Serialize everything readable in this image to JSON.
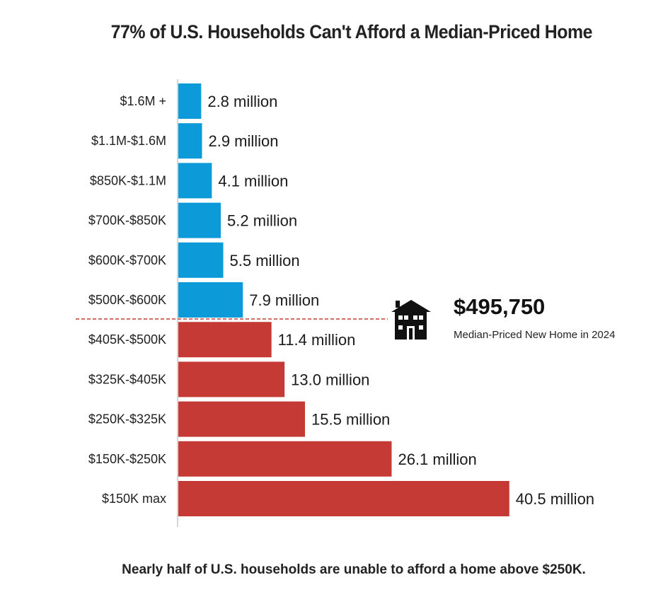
{
  "title": "77% of U.S. Households Can't Afford a Median-Priced Home",
  "caption": "Nearly half of U.S. households are unable to afford a home above $250K.",
  "colors": {
    "affordable": "#0d9ad9",
    "unaffordable": "#c53a34",
    "threshold_line": "#c53a34",
    "axis": "#c8c8c8"
  },
  "annotation": {
    "value": "$495,750",
    "label": "Median-Priced New Home in 2024",
    "icon": "house-icon"
  },
  "chart_data": {
    "type": "bar",
    "orientation": "horizontal",
    "title": "77% of U.S. Households Can't Afford a Median-Priced Home",
    "categories": [
      "$1.6M +",
      "$1.1M-$1.6M",
      "$850K-$1.1M",
      "$700K-$850K",
      "$600K-$700K",
      "$500K-$600K",
      "$405K-$500K",
      "$325K-$405K",
      "$250K-$325K",
      "$150K-$250K",
      "$150K max"
    ],
    "values": [
      2.8,
      2.9,
      4.1,
      5.2,
      5.5,
      7.9,
      11.4,
      13.0,
      15.5,
      26.1,
      40.5
    ],
    "value_labels": [
      "2.8 million",
      "2.9 million",
      "4.1 million",
      "5.2 million",
      "5.5 million",
      "7.9 million",
      "11.4 million",
      "13.0 million",
      "15.5 million",
      "26.1 million",
      "40.5 million"
    ],
    "group": [
      "affordable",
      "affordable",
      "affordable",
      "affordable",
      "affordable",
      "affordable",
      "unaffordable",
      "unaffordable",
      "unaffordable",
      "unaffordable",
      "unaffordable"
    ],
    "threshold": {
      "value": 495750,
      "between": [
        "$500K-$600K",
        "$405K-$500K"
      ]
    },
    "xlabel": "",
    "ylabel": "",
    "grid": false,
    "legend": "none"
  }
}
